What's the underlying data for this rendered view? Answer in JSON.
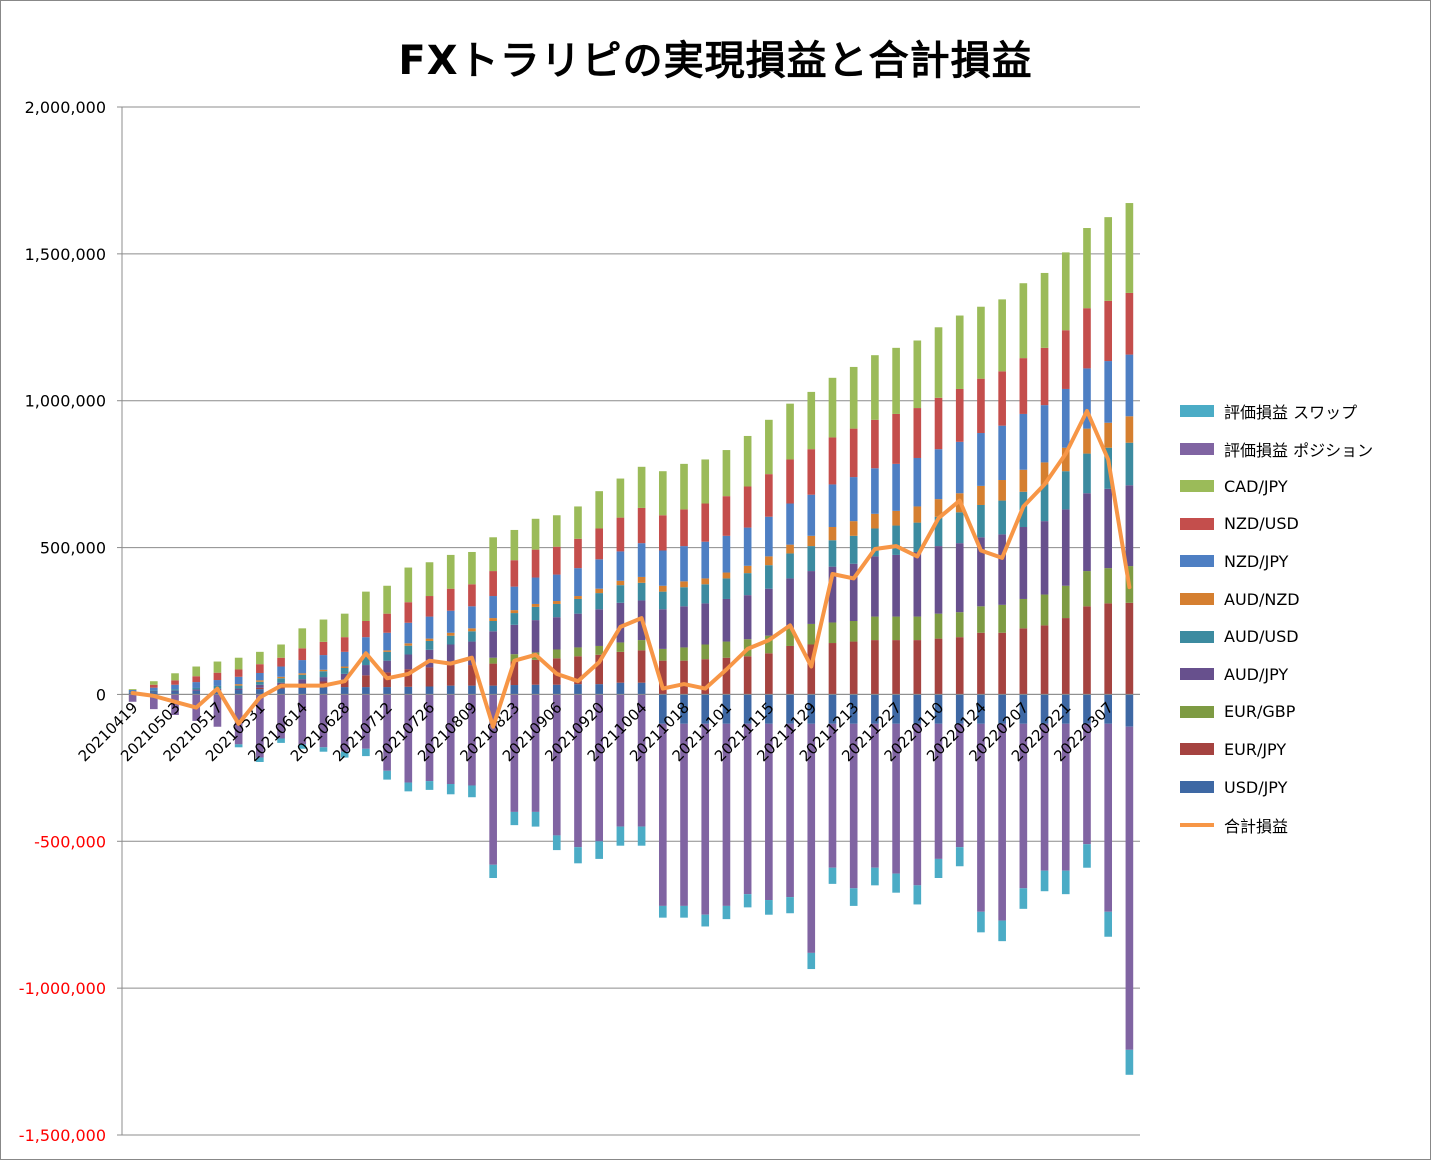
{
  "chart_data": {
    "type": "bar",
    "stacked": true,
    "title": "FXトラリピの実現損益と合計損益",
    "ylim": [
      -1500000,
      2000000
    ],
    "y_ticks": [
      2000000,
      1500000,
      1000000,
      500000,
      0,
      -500000,
      -1000000,
      -1500000
    ],
    "y_tick_labels": [
      "2,000,000",
      "1,500,000",
      "1,000,000",
      "500,000",
      "0",
      "-500,000",
      "-1,000,000",
      "-1,500,000"
    ],
    "negative_tick_color": "#FF0000",
    "grid": "horizontal",
    "legend_position": "right",
    "x": [
      "20210419",
      "20210426",
      "20210503",
      "20210510",
      "20210517",
      "20210524",
      "20210531",
      "20210607",
      "20210614",
      "20210621",
      "20210628",
      "20210705",
      "20210712",
      "20210719",
      "20210726",
      "20210802",
      "20210809",
      "20210816",
      "20210823",
      "20210830",
      "20210906",
      "20210913",
      "20210920",
      "20210927",
      "20211004",
      "20211011",
      "20211018",
      "20211025",
      "20211101",
      "20211108",
      "20211115",
      "20211122",
      "20211129",
      "20211206",
      "20211213",
      "20211220",
      "20211227",
      "20220103",
      "20220110",
      "20220117",
      "20220124",
      "20220131",
      "20220207",
      "20220214",
      "20220221",
      "20220228",
      "20220307",
      "20220314"
    ],
    "x_tick_labels_shown": [
      "20210419",
      "20210503",
      "20210517",
      "20210531",
      "20210614",
      "20210628",
      "20210712",
      "20210726",
      "20210809",
      "20210823",
      "20210906",
      "20210920",
      "20211004",
      "20211018",
      "20211101",
      "20211115",
      "20211129",
      "20211213",
      "20211227",
      "20220110",
      "20220124",
      "20220207",
      "20220221",
      "20220307"
    ],
    "total_positive": [
      18000,
      45000,
      72000,
      95000,
      112000,
      125000,
      145000,
      170000,
      225000,
      255000,
      275000,
      350000,
      370000,
      432000,
      450000,
      475000,
      485000,
      535000,
      580000,
      608000,
      610000,
      640000,
      692000,
      735000,
      775000,
      780000,
      805000,
      820000,
      852000,
      880000,
      935000,
      990000,
      1030000,
      1078000,
      1115000,
      1155000,
      1180000,
      1205000,
      1250000,
      1290000,
      1320000,
      1345000,
      1400000,
      1435000,
      1505000,
      1588000,
      1635000,
      1685000
    ],
    "series": [
      {
        "name": "USD/JPY",
        "color": "#3E68A4",
        "values": [
          5000,
          8000,
          10000,
          12000,
          14000,
          15000,
          18000,
          20000,
          22000,
          24000,
          25000,
          25000,
          25000,
          26000,
          27000,
          30000,
          30000,
          30000,
          32000,
          33000,
          33000,
          35000,
          35000,
          40000,
          40000,
          -100000,
          -100000,
          -100000,
          -100000,
          -100000,
          -100000,
          -100000,
          -100000,
          -100000,
          -100000,
          -100000,
          -100000,
          -100000,
          -100000,
          -100000,
          -100000,
          -100000,
          -100000,
          -100000,
          -100000,
          -100000,
          -100000,
          -110000
        ]
      },
      {
        "name": "EUR/JPY",
        "color": "#A54340",
        "values": [
          0,
          0,
          0,
          0,
          0,
          0,
          5000,
          10000,
          15000,
          20000,
          25000,
          40000,
          50000,
          60000,
          65000,
          70000,
          70000,
          75000,
          80000,
          85000,
          90000,
          95000,
          100000,
          105000,
          110000,
          115000,
          115000,
          120000,
          125000,
          130000,
          140000,
          165000,
          170000,
          175000,
          180000,
          185000,
          185000,
          185000,
          190000,
          195000,
          210000,
          210000,
          225000,
          235000,
          260000,
          300000,
          310000,
          312000
        ]
      },
      {
        "name": "EUR/GBP",
        "color": "#7E9B43",
        "values": [
          0,
          0,
          0,
          0,
          0,
          0,
          0,
          0,
          0,
          0,
          0,
          0,
          0,
          0,
          0,
          0,
          0,
          20000,
          25000,
          25000,
          30000,
          30000,
          30000,
          32000,
          35000,
          40000,
          45000,
          50000,
          55000,
          58000,
          60000,
          60000,
          70000,
          70000,
          70000,
          80000,
          80000,
          80000,
          85000,
          85000,
          90000,
          95000,
          100000,
          105000,
          110000,
          120000,
          120000,
          125000
        ]
      },
      {
        "name": "AUD/JPY",
        "color": "#67508D",
        "values": [
          2000,
          2000,
          3000,
          5000,
          5000,
          5000,
          10000,
          10000,
          15000,
          15000,
          20000,
          35000,
          40000,
          50000,
          60000,
          70000,
          80000,
          90000,
          100000,
          110000,
          110000,
          115000,
          125000,
          135000,
          135000,
          135000,
          140000,
          140000,
          145000,
          150000,
          160000,
          170000,
          180000,
          190000,
          195000,
          205000,
          210000,
          220000,
          230000,
          235000,
          235000,
          240000,
          245000,
          250000,
          260000,
          265000,
          270000,
          275000
        ]
      },
      {
        "name": "AUD/USD",
        "color": "#3C8BA0",
        "values": [
          3000,
          3000,
          5000,
          5000,
          10000,
          10000,
          10000,
          15000,
          15000,
          20000,
          20000,
          30000,
          30000,
          30000,
          30000,
          30000,
          35000,
          35000,
          40000,
          45000,
          45000,
          50000,
          55000,
          60000,
          60000,
          60000,
          65000,
          65000,
          70000,
          75000,
          80000,
          85000,
          85000,
          90000,
          95000,
          95000,
          100000,
          100000,
          100000,
          105000,
          110000,
          115000,
          120000,
          125000,
          130000,
          135000,
          140000,
          145000
        ]
      },
      {
        "name": "AUD/NZD",
        "color": "#D57F30",
        "values": [
          0,
          0,
          0,
          0,
          0,
          5000,
          5000,
          5000,
          5000,
          5000,
          5000,
          5000,
          5000,
          8000,
          8000,
          10000,
          10000,
          10000,
          10000,
          10000,
          10000,
          10000,
          15000,
          15000,
          20000,
          20000,
          20000,
          20000,
          20000,
          25000,
          30000,
          30000,
          35000,
          45000,
          50000,
          50000,
          50000,
          55000,
          60000,
          65000,
          65000,
          70000,
          75000,
          75000,
          80000,
          85000,
          85000,
          90000
        ]
      },
      {
        "name": "NZD/JPY",
        "color": "#4E7FC3",
        "values": [
          5000,
          10000,
          15000,
          20000,
          20000,
          25000,
          25000,
          35000,
          45000,
          50000,
          50000,
          60000,
          60000,
          70000,
          75000,
          75000,
          75000,
          75000,
          80000,
          90000,
          90000,
          95000,
          100000,
          100000,
          115000,
          120000,
          120000,
          125000,
          125000,
          130000,
          135000,
          140000,
          140000,
          145000,
          150000,
          155000,
          160000,
          165000,
          170000,
          175000,
          180000,
          185000,
          190000,
          195000,
          200000,
          205000,
          210000,
          210000
        ]
      },
      {
        "name": "NZD/USD",
        "color": "#C44E4C",
        "values": [
          0,
          10000,
          15000,
          20000,
          25000,
          25000,
          30000,
          30000,
          40000,
          45000,
          50000,
          55000,
          65000,
          70000,
          70000,
          75000,
          75000,
          85000,
          90000,
          95000,
          95000,
          100000,
          105000,
          115000,
          120000,
          120000,
          125000,
          130000,
          135000,
          140000,
          145000,
          150000,
          155000,
          160000,
          165000,
          165000,
          170000,
          170000,
          175000,
          180000,
          185000,
          185000,
          190000,
          195000,
          200000,
          205000,
          205000,
          210000
        ]
      },
      {
        "name": "CAD/JPY",
        "color": "#9BBB59",
        "values": [
          3000,
          12000,
          24000,
          33000,
          38000,
          40000,
          42000,
          45000,
          68000,
          76000,
          80000,
          100000,
          95000,
          118000,
          115000,
          115000,
          110000,
          115000,
          103000,
          105000,
          107000,
          110000,
          127000,
          133000,
          140000,
          150000,
          155000,
          150000,
          157000,
          172000,
          185000,
          190000,
          195000,
          203000,
          210000,
          220000,
          225000,
          230000,
          240000,
          250000,
          245000,
          245000,
          255000,
          255000,
          265000,
          273000,
          285000,
          306000
        ]
      },
      {
        "name": "評価損益 ポジション",
        "color": "#8064A2",
        "values": [
          -25000,
          -50000,
          -70000,
          -90000,
          -110000,
          -170000,
          -215000,
          -150000,
          -170000,
          -180000,
          -195000,
          -185000,
          -260000,
          -300000,
          -295000,
          -305000,
          -310000,
          -580000,
          -400000,
          -400000,
          -480000,
          -520000,
          -500000,
          -450000,
          -450000,
          -620000,
          -620000,
          -650000,
          -620000,
          -580000,
          -600000,
          -590000,
          -780000,
          -490000,
          -560000,
          -490000,
          -510000,
          -550000,
          -460000,
          -420000,
          -640000,
          -670000,
          -560000,
          -500000,
          -500000,
          -410000,
          -640000,
          -1100000
        ]
      },
      {
        "name": "評価損益 スワップ",
        "color": "#4BACC6",
        "values": [
          0,
          0,
          0,
          0,
          0,
          -10000,
          -15000,
          -15000,
          -15000,
          -15000,
          -20000,
          -25000,
          -30000,
          -30000,
          -30000,
          -35000,
          -40000,
          -45000,
          -45000,
          -50000,
          -50000,
          -55000,
          -60000,
          -65000,
          -65000,
          -40000,
          -40000,
          -40000,
          -45000,
          -45000,
          -50000,
          -55000,
          -55000,
          -55000,
          -60000,
          -60000,
          -65000,
          -65000,
          -65000,
          -65000,
          -70000,
          -70000,
          -70000,
          -70000,
          -80000,
          -80000,
          -85000,
          -85000
        ]
      }
    ],
    "line_series": {
      "name": "合計損益",
      "color": "#F79646",
      "values": [
        5000,
        -5000,
        -25000,
        -45000,
        20000,
        -100000,
        -10000,
        30000,
        30000,
        30000,
        45000,
        140000,
        55000,
        70000,
        115000,
        105000,
        125000,
        -110000,
        115000,
        135000,
        70000,
        45000,
        110000,
        230000,
        260000,
        20000,
        35000,
        20000,
        85000,
        155000,
        185000,
        235000,
        95000,
        410000,
        395000,
        495000,
        505000,
        470000,
        600000,
        660000,
        490000,
        465000,
        640000,
        715000,
        820000,
        965000,
        800000,
        365000
      ]
    },
    "legend": [
      "評価損益 スワップ",
      "評価損益 ポジション",
      "CAD/JPY",
      "NZD/USD",
      "NZD/JPY",
      "AUD/NZD",
      "AUD/USD",
      "AUD/JPY",
      "EUR/GBP",
      "EUR/JPY",
      "USD/JPY",
      "合計損益"
    ]
  }
}
